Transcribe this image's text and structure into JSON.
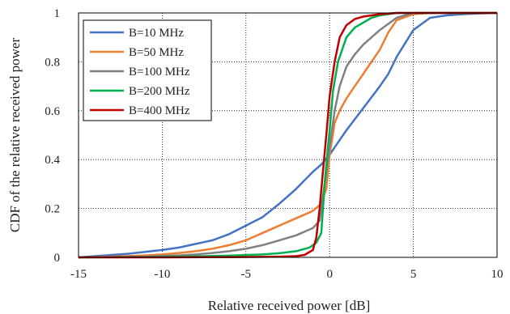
{
  "chart_data": {
    "type": "line",
    "title": "",
    "xlabel": "Relative received power [dB]",
    "ylabel": "CDF of the relative received power",
    "xlim": [
      -15,
      10
    ],
    "ylim": [
      0,
      1
    ],
    "xticks": [
      -15,
      -10,
      -5,
      0,
      5,
      10
    ],
    "yticks": [
      0,
      0.2,
      0.4,
      0.6,
      0.8,
      1
    ],
    "xtick_labels": [
      "-15",
      "-10",
      "-5",
      "0",
      "5",
      "10"
    ],
    "ytick_labels": [
      "0",
      "0.2",
      "0.4",
      "0.6",
      "0.8",
      "1"
    ],
    "grid": "dotted",
    "legend_position": "top-left",
    "series": [
      {
        "name": "B=10 MHz",
        "color": "#4472C4",
        "x": [
          -15,
          -13,
          -12,
          -10,
          -9,
          -8,
          -7,
          -6,
          -5,
          -4,
          -3,
          -2,
          -1,
          -0.5,
          0,
          0.5,
          1,
          2,
          3,
          3.5,
          4,
          5,
          6,
          7,
          8,
          9,
          10
        ],
        "y": [
          0,
          0.01,
          0.015,
          0.03,
          0.04,
          0.055,
          0.07,
          0.095,
          0.13,
          0.165,
          0.22,
          0.28,
          0.35,
          0.38,
          0.42,
          0.47,
          0.52,
          0.61,
          0.7,
          0.75,
          0.82,
          0.93,
          0.98,
          0.99,
          0.995,
          0.998,
          1
        ]
      },
      {
        "name": "B=50 MHz",
        "color": "#ED7D31",
        "x": [
          -15,
          -13,
          -11,
          -10,
          -9,
          -8,
          -7,
          -6,
          -5,
          -4,
          -3,
          -2,
          -1,
          -0.5,
          -0.2,
          0,
          0.3,
          0.6,
          1,
          1.5,
          2,
          3,
          3.5,
          4,
          5,
          6,
          10
        ],
        "y": [
          0,
          0.003,
          0.008,
          0.012,
          0.018,
          0.025,
          0.035,
          0.05,
          0.07,
          0.1,
          0.13,
          0.16,
          0.19,
          0.22,
          0.28,
          0.42,
          0.55,
          0.6,
          0.65,
          0.7,
          0.75,
          0.85,
          0.92,
          0.97,
          0.995,
          1,
          1
        ]
      },
      {
        "name": "B=100 MHz",
        "color": "#808080",
        "x": [
          -15,
          -11,
          -9,
          -8,
          -7,
          -6,
          -5,
          -4,
          -3,
          -2,
          -1,
          -0.6,
          -0.3,
          -0.1,
          0,
          0.3,
          0.6,
          1,
          1.5,
          2,
          3,
          4,
          5,
          10
        ],
        "y": [
          0,
          0.003,
          0.008,
          0.012,
          0.018,
          0.025,
          0.035,
          0.05,
          0.07,
          0.09,
          0.12,
          0.15,
          0.3,
          0.4,
          0.45,
          0.6,
          0.7,
          0.78,
          0.83,
          0.87,
          0.93,
          0.98,
          1,
          1
        ]
      },
      {
        "name": "B=200 MHz",
        "color": "#00B050",
        "x": [
          -15,
          -10,
          -8,
          -6,
          -4,
          -3,
          -2,
          -1.2,
          -0.8,
          -0.5,
          -0.3,
          -0.1,
          0,
          0.2,
          0.5,
          1,
          1.5,
          2,
          2.5,
          3,
          3.5,
          4,
          10
        ],
        "y": [
          0,
          0.002,
          0.004,
          0.007,
          0.012,
          0.017,
          0.025,
          0.04,
          0.06,
          0.1,
          0.3,
          0.45,
          0.52,
          0.68,
          0.8,
          0.9,
          0.94,
          0.96,
          0.98,
          0.99,
          0.995,
          1,
          1
        ]
      },
      {
        "name": "B=400 MHz",
        "color": "#C00000",
        "x": [
          -15,
          -10,
          -6,
          -4,
          -3,
          -2,
          -1.5,
          -1,
          -0.8,
          -0.6,
          -0.4,
          -0.2,
          0,
          0.3,
          0.6,
          1,
          1.5,
          2,
          3,
          4,
          10
        ],
        "y": [
          0,
          0,
          0.001,
          0.002,
          0.003,
          0.005,
          0.01,
          0.03,
          0.08,
          0.2,
          0.35,
          0.5,
          0.66,
          0.8,
          0.9,
          0.95,
          0.975,
          0.985,
          0.995,
          1,
          1
        ]
      }
    ]
  }
}
